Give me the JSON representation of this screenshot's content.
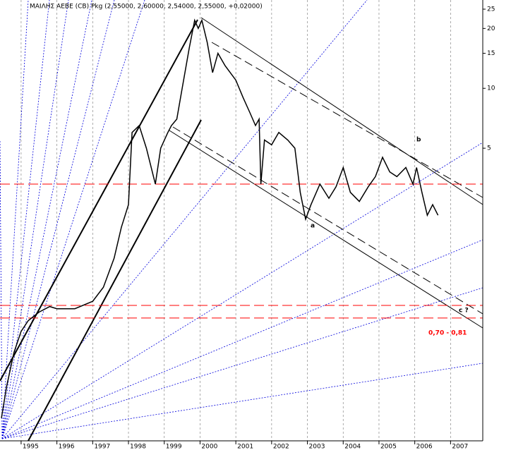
{
  "chart_data": {
    "type": "line",
    "title": "ΜΑΙΛΗΣ ΑΕΒΕ  (CB) Pkg (2,55000, 2,60000, 2,54000, 2,55000, +0,02000)",
    "x": [
      1994.45,
      1994.6,
      1994.8,
      1995.0,
      1995.2,
      1995.5,
      1995.8,
      1996.0,
      1996.5,
      1997.0,
      1997.3,
      1997.6,
      1997.8,
      1998.0,
      1998.1,
      1998.3,
      1998.5,
      1998.75,
      1998.9,
      1999.1,
      1999.2,
      1999.35,
      1999.5,
      1999.7,
      1999.85,
      1999.95,
      2000.05,
      2000.2,
      2000.35,
      2000.5,
      2000.7,
      2001.0,
      2001.2,
      2001.4,
      2001.55,
      2001.65,
      2001.7,
      2001.8,
      2002.0,
      2002.2,
      2002.45,
      2002.65,
      2002.8,
      2002.95,
      2003.1,
      2003.35,
      2003.6,
      2003.8,
      2004.0,
      2004.2,
      2004.45,
      2004.7,
      2004.9,
      2005.1,
      2005.3,
      2005.5,
      2005.75,
      2005.95,
      2006.05,
      2006.2,
      2006.35,
      2006.5,
      2006.65
    ],
    "values": [
      0.22,
      0.32,
      0.47,
      0.6,
      0.68,
      0.75,
      0.8,
      0.78,
      0.78,
      0.85,
      1.0,
      1.4,
      2.0,
      2.6,
      6.0,
      6.5,
      5.0,
      3.3,
      5.0,
      6.0,
      6.5,
      7.0,
      10,
      16,
      22,
      20,
      22,
      17,
      12,
      15,
      13,
      11,
      9,
      7.5,
      6.5,
      7,
      3.3,
      5.5,
      5.2,
      6.0,
      5.5,
      5.0,
      3.0,
      2.2,
      2.6,
      3.3,
      2.8,
      3.2,
      4.0,
      3.0,
      2.7,
      3.2,
      3.6,
      4.5,
      3.8,
      3.6,
      4.0,
      3.3,
      4.0,
      3.0,
      2.3,
      2.6,
      2.3
    ],
    "color": "#000000",
    "xlim": [
      1994.41,
      2007.9
    ],
    "xticks": [
      1995,
      1996,
      1997,
      1998,
      1999,
      2000,
      2001,
      2002,
      2003,
      2004,
      2005,
      2006,
      2007
    ],
    "ylim": [
      0.169,
      27.8
    ],
    "yticks": [
      5,
      10,
      15,
      20,
      25
    ],
    "log_y": true,
    "grid": "x",
    "reference_lines": {
      "values": [
        3.3,
        0.81,
        0.7
      ],
      "color": "#ff0000"
    },
    "annotations": [
      "a",
      "b",
      "c ?",
      "0,70 - 0,81"
    ]
  }
}
